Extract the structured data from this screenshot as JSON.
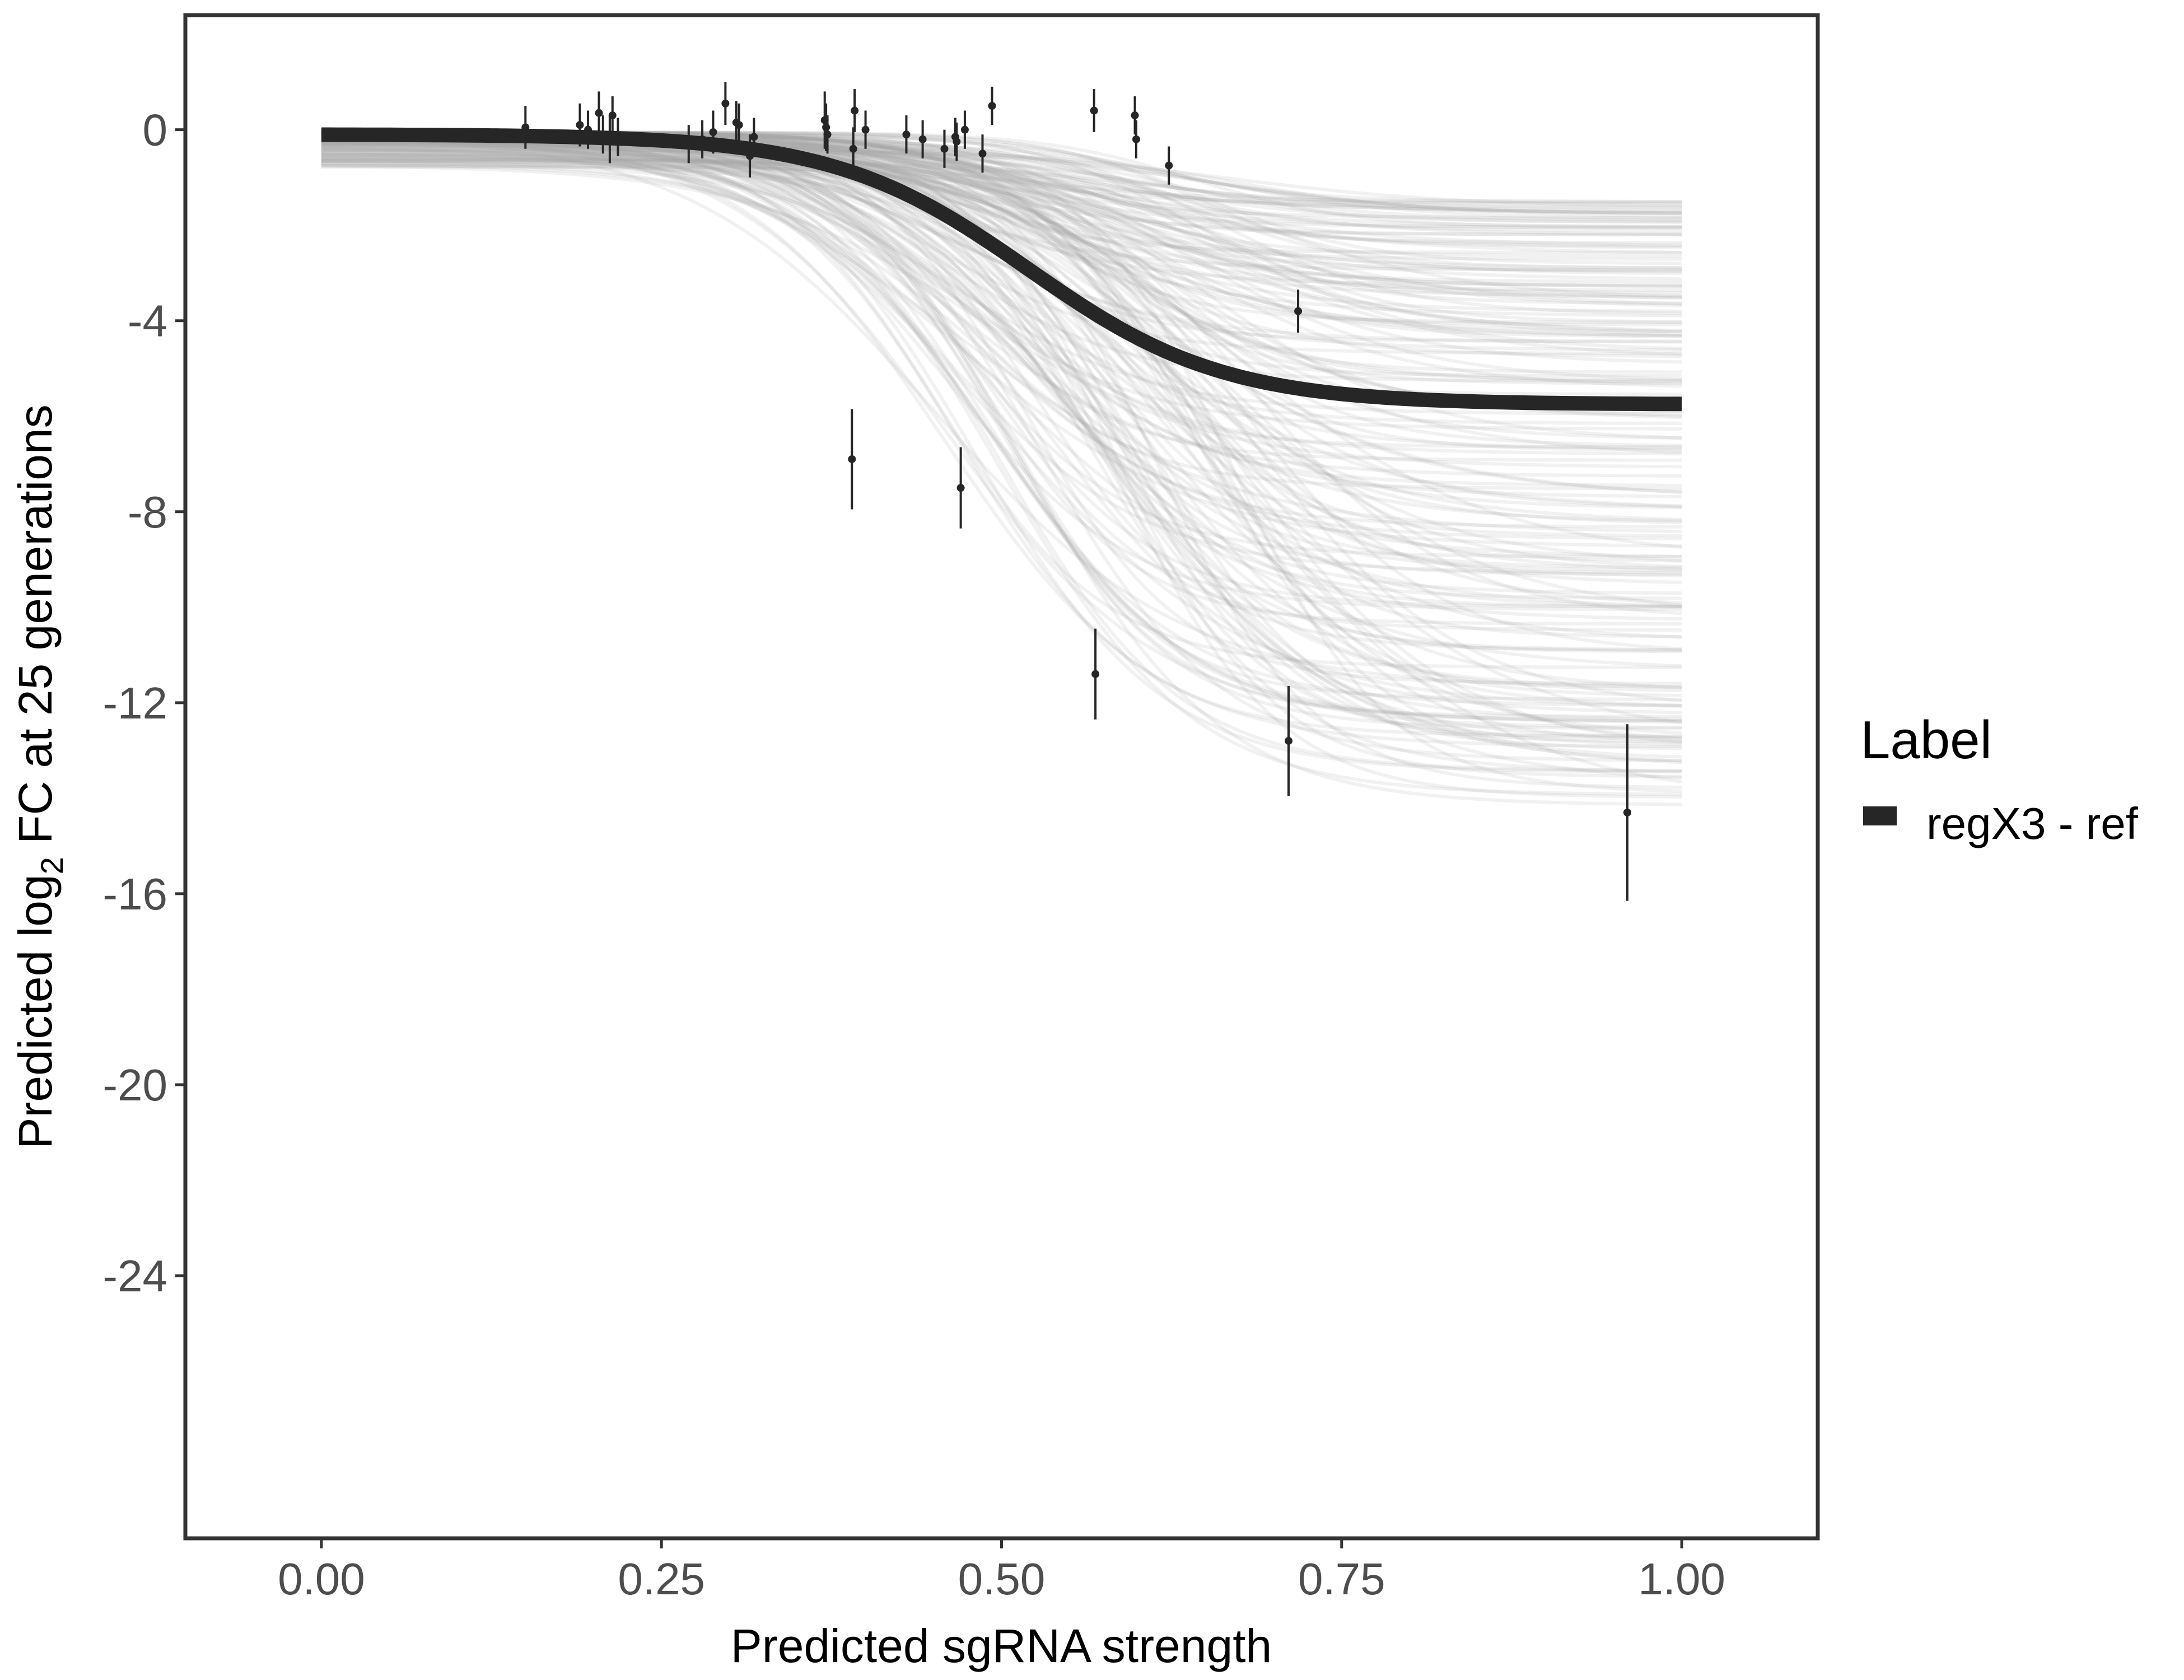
{
  "chart_data": {
    "type": "line",
    "title": "",
    "xlabel": "Predicted sgRNA strength",
    "ylabel_prefix": "Predicted  log",
    "ylabel_subscript": "2",
    "ylabel_suffix": " FC at 25 generations",
    "xlim": [
      -0.1,
      1.1
    ],
    "ylim": [
      -29.5,
      2.4
    ],
    "x_ticks": [
      0.0,
      0.25,
      0.5,
      0.75,
      1.0
    ],
    "x_tick_labels": [
      "0.00",
      "0.25",
      "0.50",
      "0.75",
      "1.00"
    ],
    "y_ticks": [
      0,
      -4,
      -8,
      -12,
      -16,
      -20,
      -24
    ],
    "y_tick_labels": [
      "0",
      "-4",
      "-8",
      "-12",
      "-16",
      "-20",
      "-24"
    ],
    "grid": false,
    "legend": {
      "title": "Label",
      "position": "right",
      "entries": [
        {
          "label": "regX3 - ref",
          "color": "#262626"
        }
      ]
    },
    "main_curve": {
      "name": "regX3 - ref",
      "color": "#262626",
      "baseline": -0.1,
      "asymptote": -5.75,
      "midpoint": 0.52,
      "steepness": 14
    },
    "posterior_draws": {
      "count": 200,
      "color": "#a6a6a6",
      "asymptote_range": [
        -14.2,
        -1.5
      ],
      "midpoint_range": [
        0.45,
        0.68
      ],
      "steepness_range": [
        10,
        18
      ]
    },
    "points": [
      {
        "x": 0.15,
        "y": 0.05,
        "err": 0.45
      },
      {
        "x": 0.19,
        "y": 0.1,
        "err": 0.45
      },
      {
        "x": 0.196,
        "y": 0.0,
        "err": 0.4
      },
      {
        "x": 0.204,
        "y": 0.35,
        "err": 0.45
      },
      {
        "x": 0.207,
        "y": -0.1,
        "err": 0.4
      },
      {
        "x": 0.212,
        "y": -0.2,
        "err": 0.5
      },
      {
        "x": 0.214,
        "y": 0.3,
        "err": 0.4
      },
      {
        "x": 0.218,
        "y": -0.15,
        "err": 0.4
      },
      {
        "x": 0.27,
        "y": -0.3,
        "err": 0.4
      },
      {
        "x": 0.28,
        "y": -0.2,
        "err": 0.4
      },
      {
        "x": 0.288,
        "y": -0.05,
        "err": 0.45
      },
      {
        "x": 0.297,
        "y": 0.55,
        "err": 0.45
      },
      {
        "x": 0.305,
        "y": 0.15,
        "err": 0.45
      },
      {
        "x": 0.307,
        "y": 0.1,
        "err": 0.45
      },
      {
        "x": 0.315,
        "y": -0.55,
        "err": 0.45
      },
      {
        "x": 0.318,
        "y": -0.15,
        "err": 0.4
      },
      {
        "x": 0.37,
        "y": 0.2,
        "err": 0.6
      },
      {
        "x": 0.371,
        "y": 0.05,
        "err": 0.5
      },
      {
        "x": 0.372,
        "y": -0.1,
        "err": 0.4
      },
      {
        "x": 0.39,
        "y": -6.9,
        "err": 1.05
      },
      {
        "x": 0.391,
        "y": -0.4,
        "err": 0.45
      },
      {
        "x": 0.392,
        "y": 0.4,
        "err": 0.45
      },
      {
        "x": 0.4,
        "y": 0.0,
        "err": 0.4
      },
      {
        "x": 0.43,
        "y": -0.1,
        "err": 0.4
      },
      {
        "x": 0.442,
        "y": -0.2,
        "err": 0.4
      },
      {
        "x": 0.458,
        "y": -0.4,
        "err": 0.4
      },
      {
        "x": 0.466,
        "y": -0.15,
        "err": 0.4
      },
      {
        "x": 0.467,
        "y": -0.25,
        "err": 0.4
      },
      {
        "x": 0.47,
        "y": -7.5,
        "err": 0.85
      },
      {
        "x": 0.473,
        "y": 0.0,
        "err": 0.4
      },
      {
        "x": 0.486,
        "y": -0.5,
        "err": 0.4
      },
      {
        "x": 0.493,
        "y": 0.5,
        "err": 0.4
      },
      {
        "x": 0.568,
        "y": 0.4,
        "err": 0.45
      },
      {
        "x": 0.569,
        "y": -11.4,
        "err": 0.95
      },
      {
        "x": 0.598,
        "y": 0.3,
        "err": 0.4
      },
      {
        "x": 0.599,
        "y": -0.2,
        "err": 0.4
      },
      {
        "x": 0.623,
        "y": -0.75,
        "err": 0.4
      },
      {
        "x": 0.711,
        "y": -12.8,
        "err": 1.15
      },
      {
        "x": 0.718,
        "y": -3.8,
        "err": 0.45
      },
      {
        "x": 0.96,
        "y": -14.3,
        "err": 1.85
      }
    ]
  }
}
